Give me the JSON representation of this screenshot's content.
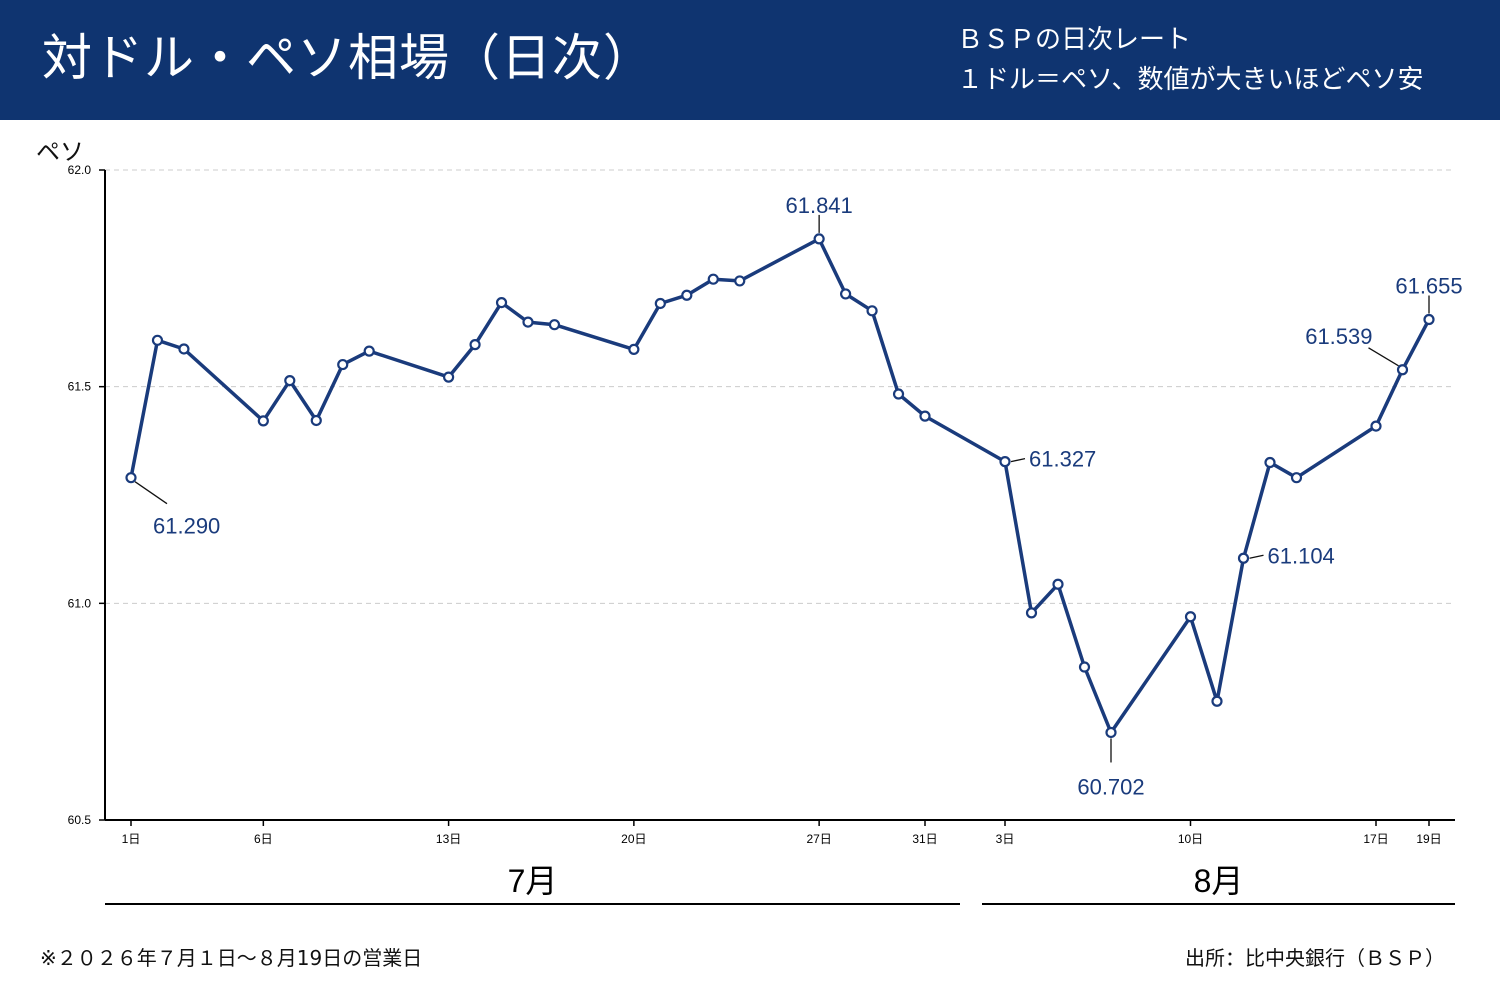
{
  "header": {
    "title": "対ドル・ペソ相場（日次）",
    "subtitle_line1": "ＢＳＰの日次レート",
    "subtitle_line2": "１ドル＝ペソ、数値が大きいほどペソ安"
  },
  "footer": {
    "note": "※２０２６年７月１日〜８月19日の営業日",
    "source": "出所：比中央銀行（ＢＳＰ）"
  },
  "colors": {
    "header_bg": "#0f3470",
    "line": "#1a3b7c",
    "grid": "#cccccc"
  },
  "chart_data": {
    "type": "line",
    "ylabel": "ペソ",
    "ylim": [
      60.5,
      62.0
    ],
    "yticks": [
      60.5,
      61.0,
      61.5,
      62.0
    ],
    "ytick_labels": [
      "60.5",
      "61.0",
      "61.5",
      "62.0"
    ],
    "grid": "horizontal dashed",
    "x_months": [
      {
        "label": "7月",
        "start": "2026-07-01",
        "end": "2026-07-31"
      },
      {
        "label": "8月",
        "start": "2026-08-01",
        "end": "2026-08-19"
      }
    ],
    "xticks": [
      {
        "date": "2026-07-01",
        "label": "1日"
      },
      {
        "date": "2026-07-06",
        "label": "6日"
      },
      {
        "date": "2026-07-13",
        "label": "13日"
      },
      {
        "date": "2026-07-20",
        "label": "20日"
      },
      {
        "date": "2026-07-27",
        "label": "27日"
      },
      {
        "date": "2026-07-31",
        "label": "31日"
      },
      {
        "date": "2026-08-03",
        "label": "3日"
      },
      {
        "date": "2026-08-10",
        "label": "10日"
      },
      {
        "date": "2026-08-17",
        "label": "17日"
      },
      {
        "date": "2026-08-19",
        "label": "19日"
      }
    ],
    "series": [
      {
        "x": [
          "2026-07-01",
          "2026-07-02",
          "2026-07-03",
          "2026-07-06",
          "2026-07-07",
          "2026-07-08",
          "2026-07-09",
          "2026-07-10",
          "2026-07-13",
          "2026-07-14",
          "2026-07-15",
          "2026-07-16",
          "2026-07-17",
          "2026-07-20",
          "2026-07-21",
          "2026-07-22",
          "2026-07-23",
          "2026-07-24",
          "2026-07-27",
          "2026-07-28",
          "2026-07-29",
          "2026-07-30",
          "2026-07-31",
          "2026-08-03",
          "2026-08-04",
          "2026-08-05",
          "2026-08-06",
          "2026-08-07",
          "2026-08-10",
          "2026-08-11",
          "2026-08-12",
          "2026-08-13",
          "2026-08-14",
          "2026-08-17",
          "2026-08-18",
          "2026-08-19"
        ],
        "values": [
          61.29,
          61.607,
          61.587,
          61.421,
          61.514,
          61.422,
          61.551,
          61.582,
          61.522,
          61.597,
          61.694,
          61.649,
          61.643,
          61.586,
          61.692,
          61.711,
          61.748,
          61.744,
          61.841,
          61.714,
          61.675,
          61.483,
          61.432,
          61.327,
          60.978,
          61.044,
          60.853,
          60.702,
          60.969,
          60.774,
          61.104,
          61.325,
          61.29,
          61.409,
          61.539,
          61.655
        ]
      }
    ],
    "annotations": [
      {
        "date": "2026-07-01",
        "label": "61.290",
        "pos": "below-right"
      },
      {
        "date": "2026-07-27",
        "label": "61.841",
        "pos": "above"
      },
      {
        "date": "2026-08-03",
        "label": "61.327",
        "pos": "right"
      },
      {
        "date": "2026-08-07",
        "label": "60.702",
        "pos": "below"
      },
      {
        "date": "2026-08-12",
        "label": "61.104",
        "pos": "right"
      },
      {
        "date": "2026-08-18",
        "label": "61.539",
        "pos": "above-left"
      },
      {
        "date": "2026-08-19",
        "label": "61.655",
        "pos": "above"
      }
    ]
  }
}
